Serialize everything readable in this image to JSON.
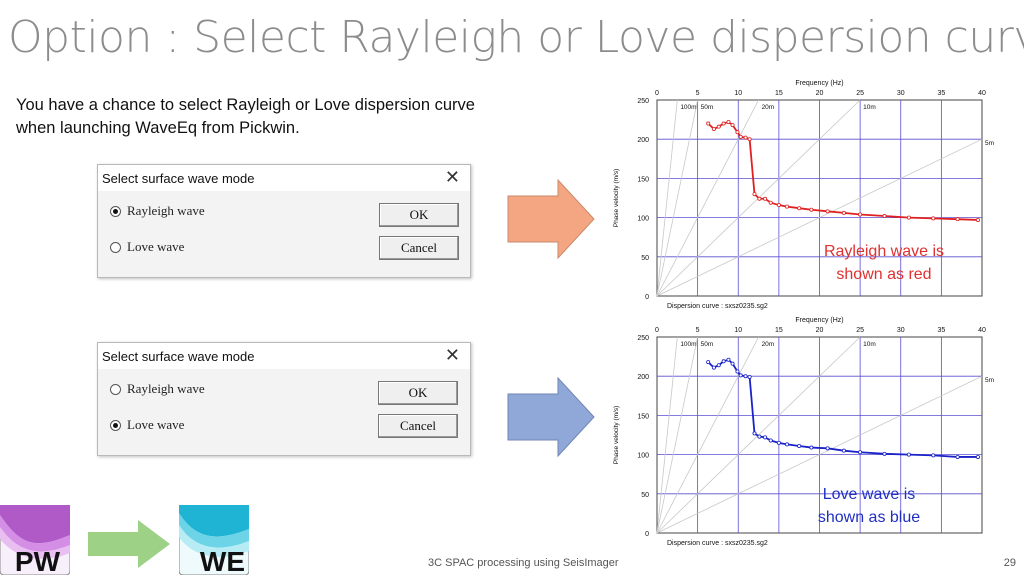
{
  "slide": {
    "title": "Option : Select Rayleigh or Love dispersion curve",
    "body": "You have a chance to select Rayleigh or Love dispersion curve when launching WaveEq from Pickwin.",
    "footer": "3C SPAC processing using SeisImager",
    "page": "29"
  },
  "dialogs": [
    {
      "title": "Select surface wave mode",
      "options": [
        "Rayleigh wave",
        "Love wave"
      ],
      "selected": "Rayleigh wave",
      "ok_label": "OK",
      "cancel_label": "Cancel"
    },
    {
      "title": "Select surface wave mode",
      "options": [
        "Rayleigh wave",
        "Love wave"
      ],
      "selected": "Love wave",
      "ok_label": "OK",
      "cancel_label": "Cancel"
    }
  ],
  "arrows": {
    "top_color": "#f4a582",
    "bottom_color": "#8fa8d8",
    "logo_arrow_color": "#9dd186"
  },
  "logos": {
    "pickwin": "PW",
    "waveeq": "WE"
  },
  "notes": {
    "rayleigh": "Rayleigh wave is shown as red",
    "love": "Love wave is shown as blue",
    "rayleigh_color": "#e03030",
    "love_color": "#2030c0"
  },
  "chart_data": [
    {
      "type": "line",
      "title": "Frequency (Hz)",
      "xlabel": "Frequency (Hz)",
      "ylabel": "Phase velocity (m/s)",
      "caption": "Dispersion curve : sxsz0235.sg2",
      "xlim": [
        0,
        40
      ],
      "ylim": [
        0,
        250
      ],
      "xticks": [
        "0",
        "5",
        "10",
        "15",
        "20",
        "25",
        "30",
        "35",
        "40"
      ],
      "yticks": [
        "0",
        "50",
        "100",
        "150",
        "200",
        "250"
      ],
      "wavelength_labels": [
        "100m",
        "50m",
        "20m",
        "10m",
        "5m"
      ],
      "series": [
        {
          "color": "#e02020",
          "x": [
            6.3,
            7.0,
            7.6,
            8.2,
            8.8,
            9.3,
            9.9,
            10.3,
            10.9,
            11.4,
            12.0,
            12.6,
            13.3,
            14.0,
            15.0,
            16.0,
            17.5,
            19.0,
            21.0,
            23.0,
            25.0,
            28.0,
            31.0,
            34.0,
            37.0,
            39.5
          ],
          "y": [
            220,
            213,
            216,
            220,
            222,
            218,
            209,
            203,
            202,
            200,
            130,
            124,
            124,
            119,
            116,
            114,
            112,
            110,
            108,
            106,
            104,
            102,
            100,
            99,
            98,
            97
          ]
        }
      ]
    },
    {
      "type": "line",
      "title": "Frequency (Hz)",
      "xlabel": "Frequency (Hz)",
      "ylabel": "Phase velocity (m/s)",
      "caption": "Dispersion curve : sxsz0235.sg2",
      "xlim": [
        0,
        40
      ],
      "ylim": [
        0,
        250
      ],
      "xticks": [
        "0",
        "5",
        "10",
        "15",
        "20",
        "25",
        "30",
        "35",
        "40"
      ],
      "yticks": [
        "0",
        "50",
        "100",
        "150",
        "200",
        "250"
      ],
      "wavelength_labels": [
        "100m",
        "50m",
        "20m",
        "10m",
        "5m"
      ],
      "series": [
        {
          "color": "#1a22c8",
          "x": [
            6.3,
            7.0,
            7.6,
            8.2,
            8.8,
            9.3,
            9.9,
            10.3,
            10.9,
            11.4,
            12.0,
            12.6,
            13.3,
            14.0,
            15.0,
            16.0,
            17.5,
            19.0,
            21.0,
            23.0,
            25.0,
            28.0,
            31.0,
            34.0,
            37.0,
            39.5
          ],
          "y": [
            218,
            211,
            214,
            219,
            221,
            216,
            206,
            201,
            200,
            199,
            127,
            123,
            122,
            118,
            115,
            113,
            111,
            109,
            108,
            105,
            103,
            101,
            100,
            99,
            97,
            97
          ]
        }
      ]
    }
  ]
}
